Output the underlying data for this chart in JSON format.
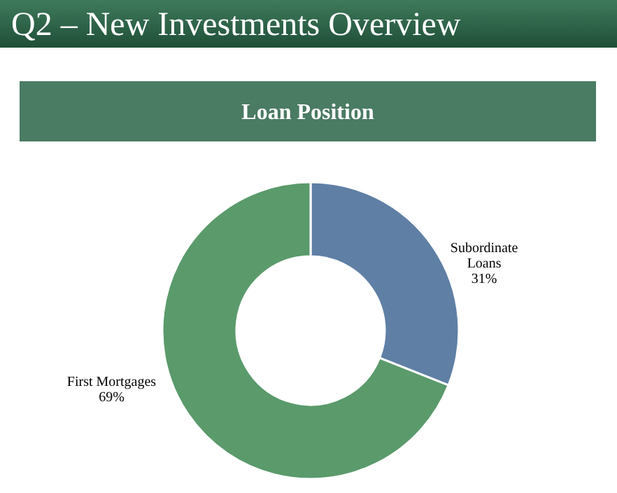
{
  "chart_data": {
    "type": "donut",
    "title": "Q2 – New Investments Overview",
    "subtitle": "Loan Position",
    "categories": [
      "Subordinate Loans",
      "First Mortgages"
    ],
    "values": [
      31,
      69
    ],
    "colors": [
      "#5f7fa5",
      "#5a9a6b"
    ],
    "value_labels": [
      "31%",
      "69%"
    ]
  }
}
